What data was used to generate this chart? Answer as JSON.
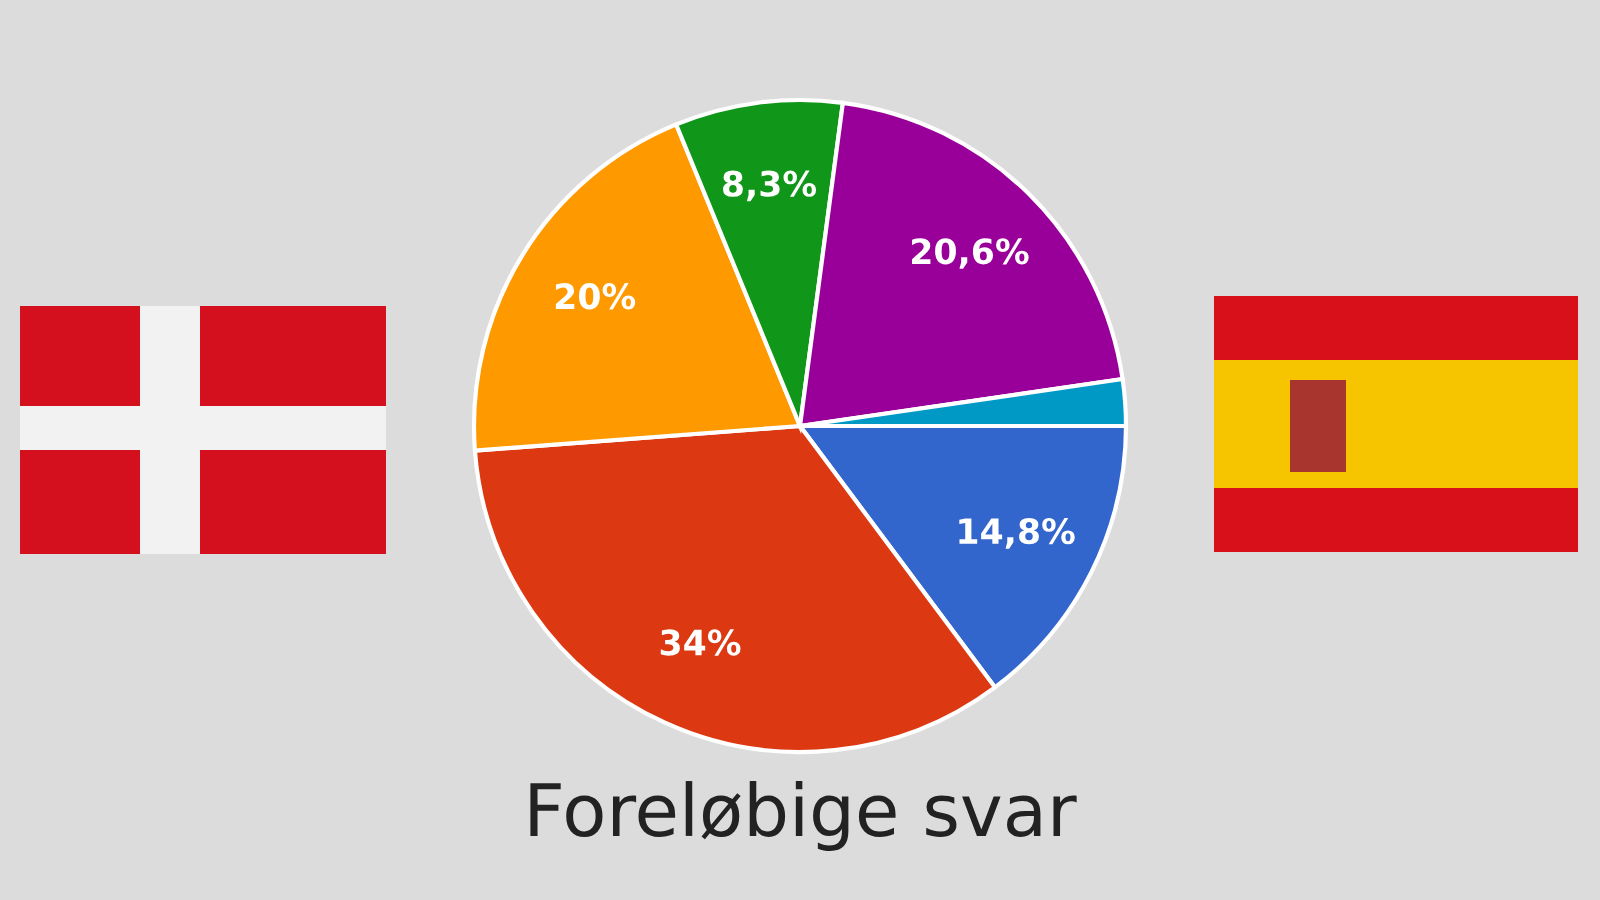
{
  "chart_data": {
    "type": "pie",
    "title": "Foreløbige svar",
    "categories": [
      null,
      null,
      null,
      null,
      null,
      null
    ],
    "values": [
      14.8,
      34,
      20,
      8.3,
      20.6,
      2.3
    ],
    "colors": [
      "#3366cc",
      "#dc3912",
      "#ff9900",
      "#109618",
      "#990099",
      "#0099c6"
    ],
    "value_labels": [
      "14,8%",
      "34%",
      "20%",
      "8,3%",
      "20,6%",
      null
    ]
  }
}
